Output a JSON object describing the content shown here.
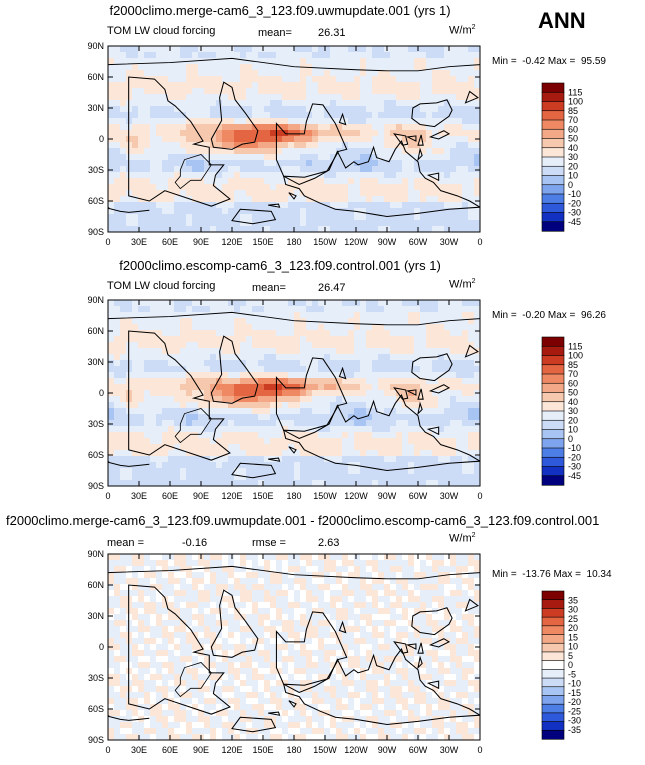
{
  "season": "ANN",
  "colors": {
    "standard": [
      "#00007f",
      "#1230c2",
      "#2f59db",
      "#4d7ee6",
      "#7ea4ee",
      "#a8c4f3",
      "#cddcf6",
      "#e6eefa",
      "#fbe6d8",
      "#f6c8ad",
      "#f3a887",
      "#ee8964",
      "#e36542",
      "#cc3c22",
      "#a61a10",
      "#7d0000"
    ],
    "diff": [
      "#00007f",
      "#1230c2",
      "#2f59db",
      "#4d7ee6",
      "#7ea4ee",
      "#a8c4f3",
      "#cddcf6",
      "#e6eefa",
      "#ffffff",
      "#fbe6d8",
      "#f6c8ad",
      "#f3a887",
      "#ee8964",
      "#e36542",
      "#cc3c22",
      "#a61a10",
      "#7d0000"
    ]
  },
  "panels": [
    {
      "title": "f2000climo.merge-cam6_3_123.f09.uwmupdate.001 (yrs 1)",
      "left_label": "TOM LW cloud forcing",
      "stat1_label": "mean=",
      "stat1_value": "26.31",
      "stat2_label": "",
      "stat2_value": "",
      "units_base": "W/m",
      "units_exp": "2",
      "min_label": "Min =",
      "min_value": "-0.42",
      "max_label": "Max =",
      "max_value": "95.59"
    },
    {
      "title": "f2000climo.escomp-cam6_3_123.f09.control.001 (yrs 1)",
      "left_label": "TOM LW cloud forcing",
      "stat1_label": "mean=",
      "stat1_value": "26.47",
      "stat2_label": "",
      "stat2_value": "",
      "units_base": "W/m",
      "units_exp": "2",
      "min_label": "Min =",
      "min_value": "-0.20",
      "max_label": "Max =",
      "max_value": "96.26"
    },
    {
      "title": "f2000climo.merge-cam6_3_123.f09.uwmupdate.001 - f2000climo.escomp-cam6_3_123.f09.control.001",
      "left_label": "",
      "stat1_label": "mean =",
      "stat1_value": "-0.16",
      "stat2_label": "rmse =",
      "stat2_value": "2.63",
      "units_base": "W/m",
      "units_exp": "2",
      "min_label": "Min =",
      "min_value": "-13.76",
      "max_label": "Max =",
      "max_value": "10.34"
    }
  ],
  "chart_data": [
    {
      "type": "heatmap",
      "title": "f2000climo.merge-cam6_3_123.f09.uwmupdate.001 (yrs 1)",
      "variable": "TOM LW cloud forcing",
      "units": "W/m2",
      "mean": 26.31,
      "min": -0.42,
      "max": 95.59,
      "x_ticks": [
        "0",
        "30E",
        "60E",
        "90E",
        "120E",
        "150E",
        "180",
        "150W",
        "120W",
        "90W",
        "60W",
        "30W",
        "0"
      ],
      "y_ticks": [
        "90N",
        "60N",
        "30N",
        "0",
        "30S",
        "60S",
        "90S"
      ],
      "colorbar_levels": [
        "115",
        "100",
        "85",
        "70",
        "60",
        "50",
        "40",
        "30",
        "20",
        "10",
        "0",
        "-10",
        "-20",
        "-30",
        "-45"
      ],
      "xlim": [
        0,
        360
      ],
      "ylim": [
        -90,
        90
      ]
    },
    {
      "type": "heatmap",
      "title": "f2000climo.escomp-cam6_3_123.f09.control.001 (yrs 1)",
      "variable": "TOM LW cloud forcing",
      "units": "W/m2",
      "mean": 26.47,
      "min": -0.2,
      "max": 96.26,
      "x_ticks": [
        "0",
        "30E",
        "60E",
        "90E",
        "120E",
        "150E",
        "180",
        "150W",
        "120W",
        "90W",
        "60W",
        "30W",
        "0"
      ],
      "y_ticks": [
        "90N",
        "60N",
        "30N",
        "0",
        "30S",
        "60S",
        "90S"
      ],
      "colorbar_levels": [
        "115",
        "100",
        "85",
        "70",
        "60",
        "50",
        "40",
        "30",
        "20",
        "10",
        "0",
        "-10",
        "-20",
        "-30",
        "-45"
      ],
      "xlim": [
        0,
        360
      ],
      "ylim": [
        -90,
        90
      ]
    },
    {
      "type": "heatmap",
      "title": "f2000climo.merge-cam6_3_123.f09.uwmupdate.001 - f2000climo.escomp-cam6_3_123.f09.control.001",
      "units": "W/m2",
      "mean": -0.16,
      "rmse": 2.63,
      "min": -13.76,
      "max": 10.34,
      "x_ticks": [
        "0",
        "30E",
        "60E",
        "90E",
        "120E",
        "150E",
        "180",
        "150W",
        "120W",
        "90W",
        "60W",
        "30W",
        "0"
      ],
      "y_ticks": [
        "90N",
        "60N",
        "30N",
        "0",
        "30S",
        "60S",
        "90S"
      ],
      "colorbar_levels": [
        "35",
        "30",
        "25",
        "20",
        "15",
        "10",
        "5",
        "0",
        "-5",
        "-10",
        "-15",
        "-20",
        "-25",
        "-30",
        "-35"
      ],
      "xlim": [
        0,
        360
      ],
      "ylim": [
        -90,
        90
      ]
    }
  ]
}
